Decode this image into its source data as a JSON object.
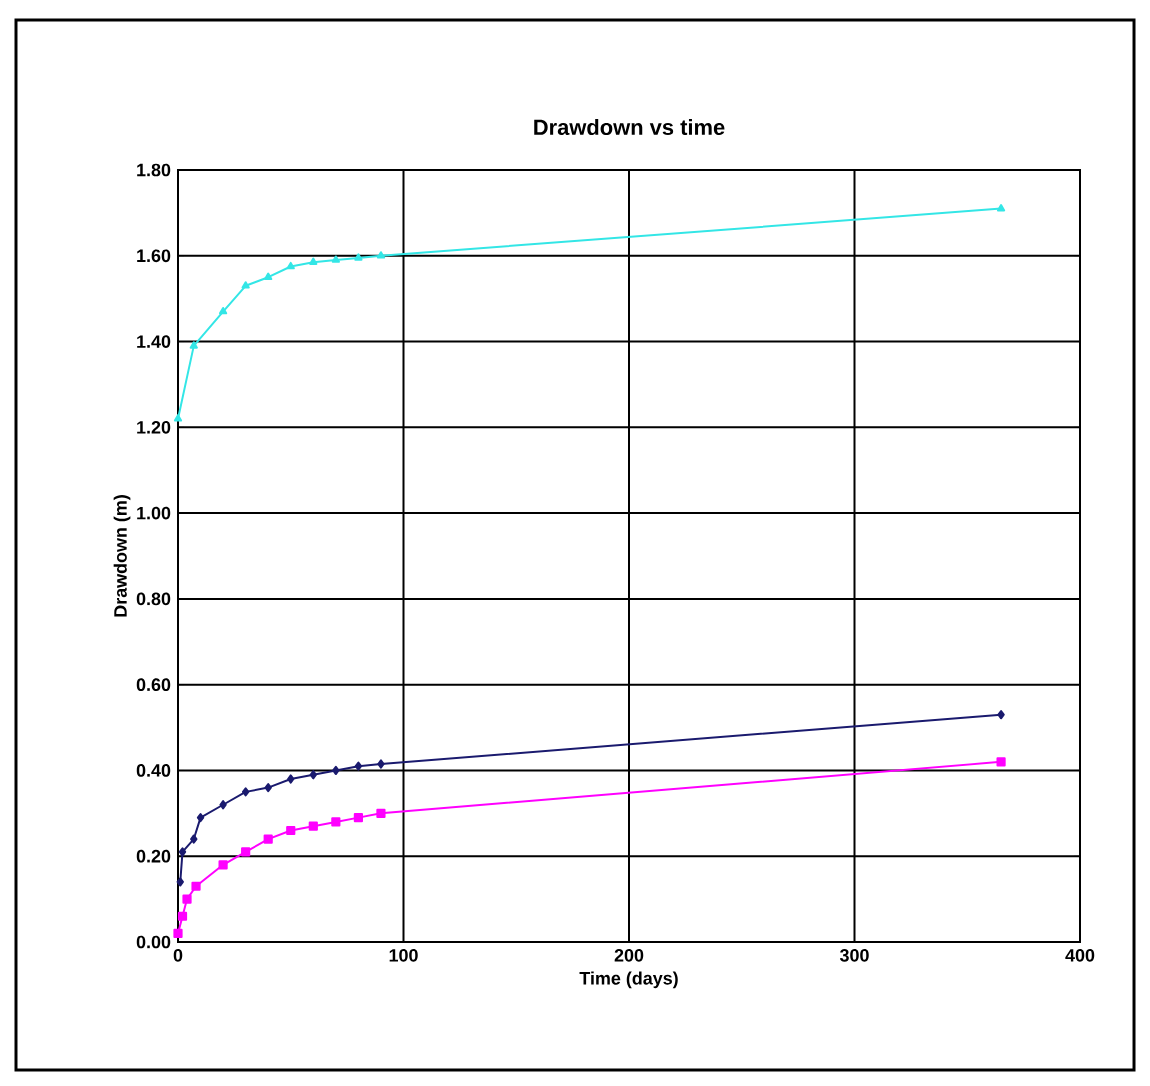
{
  "chart_data": {
    "type": "line",
    "title": "Drawdown vs time",
    "xlabel": "Time (days)",
    "ylabel": "Drawdown (m)",
    "xlim": [
      0,
      400
    ],
    "xticks": [
      0,
      100,
      200,
      300,
      400
    ],
    "ylim": [
      0,
      1.8
    ],
    "yticks": [
      {
        "value": 0,
        "label": "0.00"
      },
      {
        "value": 0.2,
        "label": "0.20"
      },
      {
        "value": 0.4,
        "label": "0.40"
      },
      {
        "value": 0.6,
        "label": "0.60"
      },
      {
        "value": 0.8,
        "label": "0.80"
      },
      {
        "value": 1.0,
        "label": "1.00"
      },
      {
        "value": 1.2,
        "label": "1.20"
      },
      {
        "value": 1.4,
        "label": "1.40"
      },
      {
        "value": 1.6,
        "label": "1.60"
      },
      {
        "value": 1.8,
        "label": "1.80"
      }
    ],
    "grid": true,
    "series": [
      {
        "color": "#1a1a6e",
        "marker": "diamond",
        "x": [
          1,
          2,
          7,
          10,
          20,
          30,
          40,
          50,
          60,
          70,
          80,
          90,
          365
        ],
        "values": [
          0.14,
          0.21,
          0.24,
          0.29,
          0.32,
          0.35,
          0.36,
          0.38,
          0.39,
          0.4,
          0.41,
          0.415,
          0.53
        ]
      },
      {
        "color": "#ff00ff",
        "marker": "square",
        "x": [
          0,
          2,
          4,
          8,
          20,
          30,
          40,
          50,
          60,
          70,
          80,
          90,
          365
        ],
        "values": [
          0.02,
          0.06,
          0.1,
          0.13,
          0.18,
          0.21,
          0.24,
          0.26,
          0.27,
          0.28,
          0.29,
          0.3,
          0.42
        ]
      },
      {
        "color": "#33e6e6",
        "marker": "triangle",
        "x": [
          0,
          7,
          20,
          30,
          40,
          50,
          60,
          70,
          80,
          90,
          365
        ],
        "values": [
          1.22,
          1.39,
          1.47,
          1.53,
          1.55,
          1.575,
          1.585,
          1.59,
          1.595,
          1.6,
          1.71
        ]
      }
    ]
  }
}
